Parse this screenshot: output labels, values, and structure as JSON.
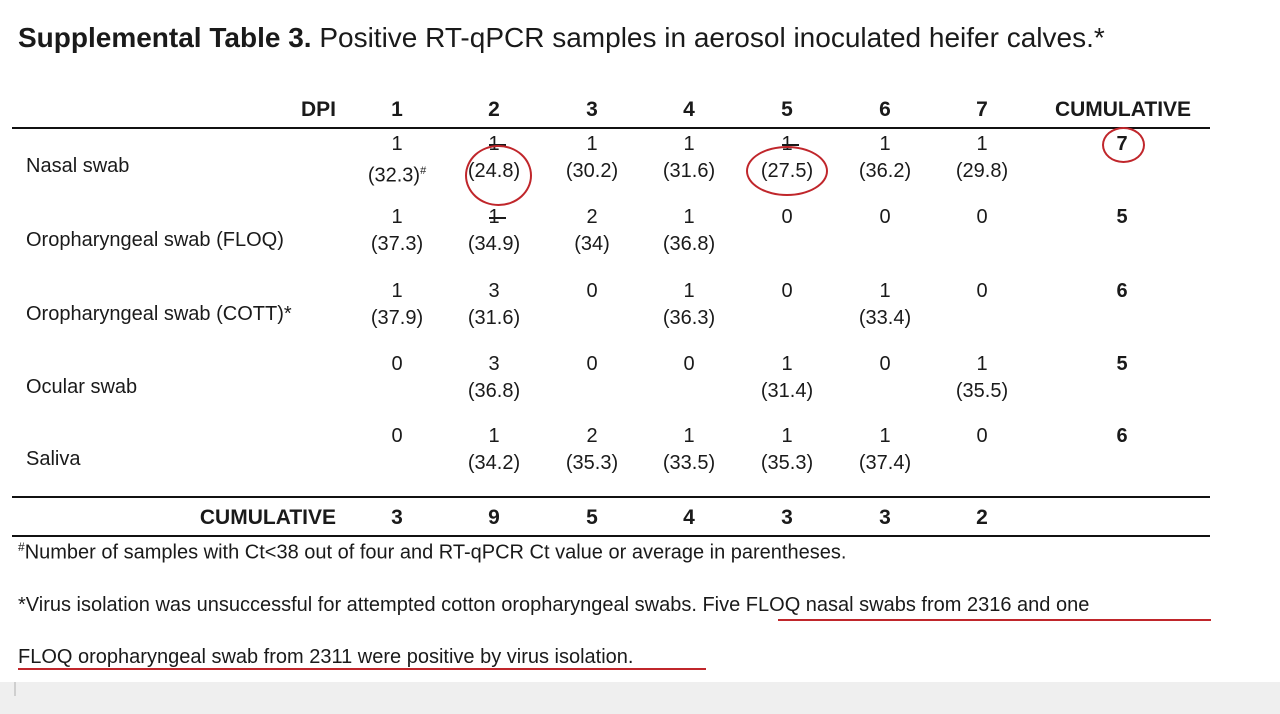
{
  "title": {
    "bold": "Supplemental Table 3.",
    "rest": " Positive RT-qPCR samples in aerosol inoculated heifer calves.*"
  },
  "header": {
    "dpi_label": "DPI",
    "days": [
      "1",
      "2",
      "3",
      "4",
      "5",
      "6",
      "7"
    ],
    "cumulative_label": "CUMULATIVE"
  },
  "rows": [
    {
      "label": "Nasal swab",
      "cells": [
        {
          "count": "1",
          "ct": "(32.3)",
          "mark": "#"
        },
        {
          "count": "1",
          "ct": "(24.8)"
        },
        {
          "count": "1",
          "ct": "(30.2)"
        },
        {
          "count": "1",
          "ct": "(31.6)"
        },
        {
          "count": "1",
          "ct": "(27.5)"
        },
        {
          "count": "1",
          "ct": "(36.2)"
        },
        {
          "count": "1",
          "ct": "(29.8)"
        }
      ],
      "cumulative": "7"
    },
    {
      "label": "Oropharyngeal swab (FLOQ)",
      "cells": [
        {
          "count": "1",
          "ct": "(37.3)"
        },
        {
          "count": "1",
          "ct": "(34.9)"
        },
        {
          "count": "2",
          "ct": "(34)"
        },
        {
          "count": "1",
          "ct": "(36.8)"
        },
        {
          "count": "0",
          "ct": ""
        },
        {
          "count": "0",
          "ct": ""
        },
        {
          "count": "0",
          "ct": ""
        }
      ],
      "cumulative": "5"
    },
    {
      "label": "Oropharyngeal swab (COTT)*",
      "cells": [
        {
          "count": "1",
          "ct": "(37.9)"
        },
        {
          "count": "3",
          "ct": "(31.6)"
        },
        {
          "count": "0",
          "ct": ""
        },
        {
          "count": "1",
          "ct": "(36.3)"
        },
        {
          "count": "0",
          "ct": ""
        },
        {
          "count": "1",
          "ct": "(33.4)"
        },
        {
          "count": "0",
          "ct": ""
        }
      ],
      "cumulative": "6"
    },
    {
      "label": "Ocular swab",
      "cells": [
        {
          "count": "0",
          "ct": ""
        },
        {
          "count": "3",
          "ct": "(36.8)"
        },
        {
          "count": "0",
          "ct": ""
        },
        {
          "count": "0",
          "ct": ""
        },
        {
          "count": "1",
          "ct": "(31.4)"
        },
        {
          "count": "0",
          "ct": ""
        },
        {
          "count": "1",
          "ct": "(35.5)"
        }
      ],
      "cumulative": "5"
    },
    {
      "label": "Saliva",
      "cells": [
        {
          "count": "0",
          "ct": ""
        },
        {
          "count": "1",
          "ct": "(34.2)"
        },
        {
          "count": "2",
          "ct": "(35.3)"
        },
        {
          "count": "1",
          "ct": "(33.5)"
        },
        {
          "count": "1",
          "ct": "(35.3)"
        },
        {
          "count": "1",
          "ct": "(37.4)"
        },
        {
          "count": "0",
          "ct": ""
        }
      ],
      "cumulative": "6"
    }
  ],
  "totals": {
    "label": "CUMULATIVE",
    "values": [
      "3",
      "9",
      "5",
      "4",
      "3",
      "3",
      "2"
    ]
  },
  "footnotes": {
    "hash_mark": "#",
    "hash_text": "Number of samples with Ct<38 out of four and RT-qPCR Ct value or average in parentheses.",
    "star_text_plain": "*Virus isolation was unsuccessful for attempted cotton oropharyngeal swabs. ",
    "star_text_underlined_1": "Five FLOQ nasal swabs from 2316 and one",
    "star_text_underlined_2": "FLOQ oropharyngeal swab from 2311 were positive by virus isolation."
  },
  "annotation_color": "#c0262b"
}
